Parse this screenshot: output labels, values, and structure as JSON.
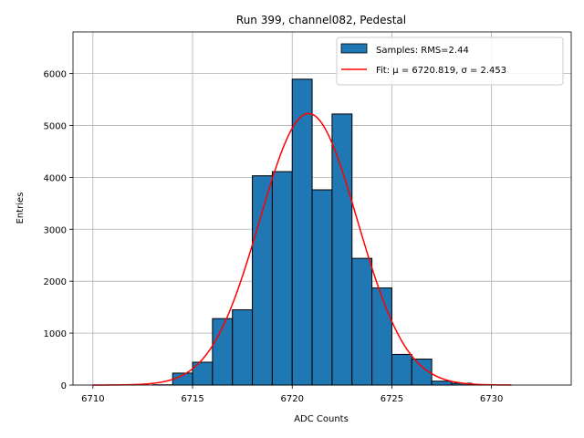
{
  "chart_data": {
    "type": "bar",
    "title": "Run 399, channel082, Pedestal",
    "xlabel": "ADC Counts",
    "ylabel": "Entries",
    "xlim": [
      6709,
      6734
    ],
    "ylim": [
      0,
      6800
    ],
    "xticks": [
      6710,
      6715,
      6720,
      6725,
      6730
    ],
    "yticks": [
      0,
      1000,
      2000,
      3000,
      4000,
      5000,
      6000
    ],
    "grid": true,
    "legend_position": "top-right",
    "histogram": {
      "name": "Samples: RMS=2.44",
      "color": "#1f77b4",
      "edge_color": "#000000",
      "bin_width": 1,
      "bins": [
        {
          "x": 6713,
          "count": 5
        },
        {
          "x": 6714,
          "count": 230
        },
        {
          "x": 6715,
          "count": 440
        },
        {
          "x": 6716,
          "count": 1280
        },
        {
          "x": 6717,
          "count": 1450
        },
        {
          "x": 6718,
          "count": 4030
        },
        {
          "x": 6719,
          "count": 4110
        },
        {
          "x": 6720,
          "count": 5890
        },
        {
          "x": 6721,
          "count": 3760
        },
        {
          "x": 6722,
          "count": 5220
        },
        {
          "x": 6723,
          "count": 2440
        },
        {
          "x": 6724,
          "count": 1870
        },
        {
          "x": 6725,
          "count": 590
        },
        {
          "x": 6726,
          "count": 500
        },
        {
          "x": 6727,
          "count": 75
        },
        {
          "x": 6728,
          "count": 35
        },
        {
          "x": 6729,
          "count": 5
        }
      ]
    },
    "fit": {
      "name": "Fit: μ = 6720.819, σ = 2.453",
      "color": "#ff0000",
      "mu": 6720.819,
      "sigma": 2.453,
      "amplitude": 5230,
      "x_range": [
        6710,
        6731
      ]
    }
  }
}
